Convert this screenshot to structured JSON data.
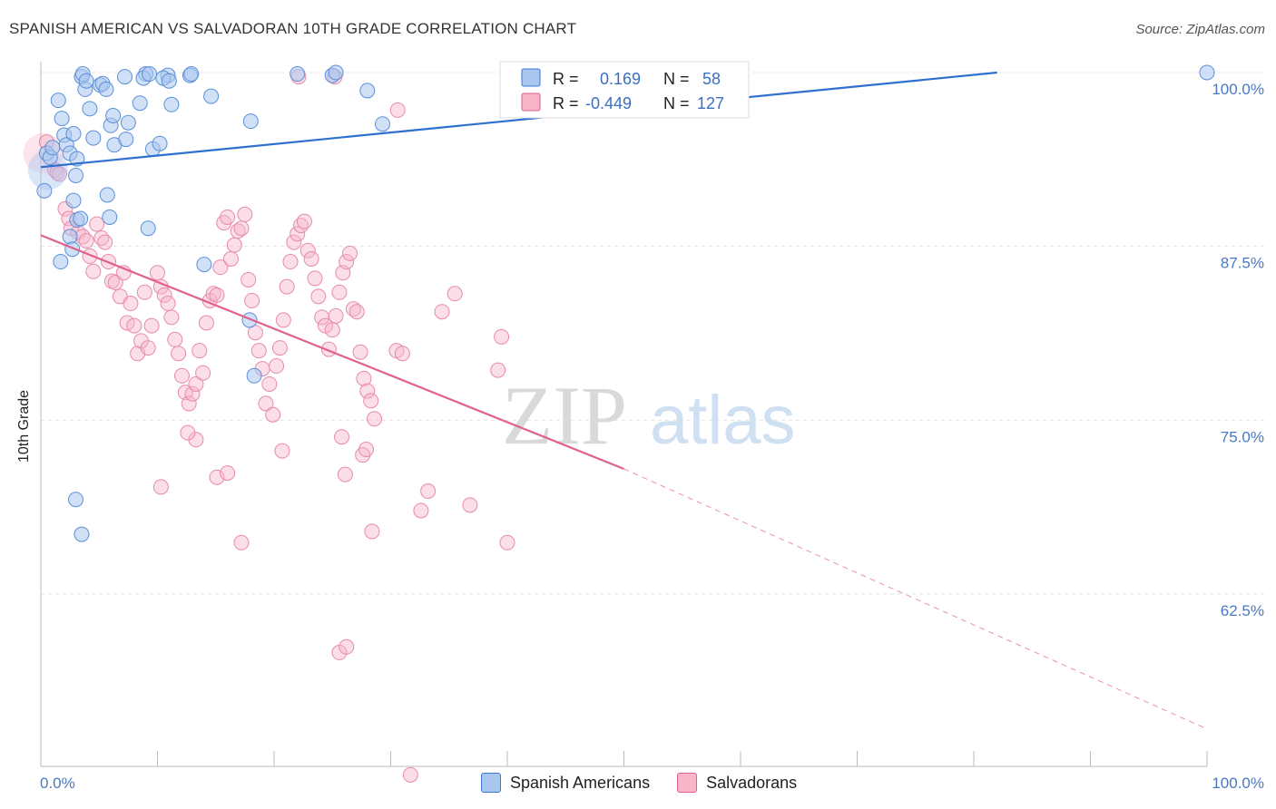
{
  "title": "SPANISH AMERICAN VS SALVADORAN 10TH GRADE CORRELATION CHART",
  "source": "Source: ZipAtlas.com",
  "watermark": {
    "zip": "ZIP",
    "atlas": "atlas"
  },
  "colors": {
    "blue": "#3b77d6",
    "blue_fill": "#a9c6ef",
    "pink": "#e0608e",
    "pink_fill": "#f6b5c9",
    "axis_label": "#4a78c2"
  },
  "legend": {
    "rows": [
      {
        "r_label": "R =",
        "r_value": "0.169",
        "n_label": "N =",
        "n_value": "58"
      },
      {
        "r_label": "R =",
        "r_value": "-0.449",
        "n_label": "N =",
        "n_value": "127"
      }
    ],
    "bottom": [
      "Spanish Americans",
      "Salvadorans"
    ]
  },
  "chart_data": {
    "type": "scatter",
    "xlabel": "",
    "ylabel": "10th Grade",
    "xlim": [
      0,
      100
    ],
    "ylim": [
      52,
      101
    ],
    "x_tick_labels": [
      "0.0%",
      "100.0%"
    ],
    "y_tick_labels": [
      "100.0%",
      "87.5%",
      "75.0%",
      "62.5%"
    ],
    "y_ticks": [
      100.0,
      87.5,
      75.0,
      62.5
    ],
    "grid": true,
    "series": [
      {
        "name": "Spanish Americans",
        "trend": {
          "x0": 0,
          "y0": 93.2,
          "x1": 82,
          "y1": 100,
          "dashed_to": null
        },
        "points": [
          [
            0.3,
            91.5
          ],
          [
            0.5,
            94.2
          ],
          [
            0.8,
            93.9
          ],
          [
            1,
            94.6
          ],
          [
            1.5,
            98
          ],
          [
            1.8,
            96.7
          ],
          [
            2,
            95.5
          ],
          [
            2.2,
            94.8
          ],
          [
            2.5,
            94.2
          ],
          [
            2.8,
            95.6
          ],
          [
            3,
            92.6
          ],
          [
            3.1,
            93.8
          ],
          [
            3.5,
            99.7
          ],
          [
            3.6,
            99.9
          ],
          [
            3.8,
            98.8
          ],
          [
            3.9,
            99.4
          ],
          [
            4.2,
            97.4
          ],
          [
            4.5,
            95.3
          ],
          [
            5.1,
            99.1
          ],
          [
            5.3,
            99.2
          ],
          [
            5.6,
            98.8
          ],
          [
            6,
            96.2
          ],
          [
            6.2,
            96.9
          ],
          [
            6.3,
            94.8
          ],
          [
            7.2,
            99.7
          ],
          [
            7.3,
            95.2
          ],
          [
            7.5,
            96.4
          ],
          [
            8.5,
            97.8
          ],
          [
            9,
            99.9
          ],
          [
            8.8,
            99.6
          ],
          [
            9.3,
            99.9
          ],
          [
            9.6,
            94.5
          ],
          [
            10.2,
            94.9
          ],
          [
            10.9,
            99.8
          ],
          [
            10.5,
            99.6
          ],
          [
            11,
            99.4
          ],
          [
            11.2,
            97.7
          ],
          [
            12.8,
            99.8
          ],
          [
            12.9,
            99.9
          ],
          [
            14.6,
            98.3
          ],
          [
            18,
            96.5
          ],
          [
            22,
            99.9
          ],
          [
            25,
            99.8
          ],
          [
            25.3,
            100
          ],
          [
            28,
            98.7
          ],
          [
            29.3,
            96.3
          ],
          [
            2.8,
            90.8
          ],
          [
            3.1,
            89.4
          ],
          [
            3.4,
            89.5
          ],
          [
            2.5,
            88.2
          ],
          [
            2.7,
            87.3
          ],
          [
            1.7,
            86.4
          ],
          [
            5.7,
            91.2
          ],
          [
            5.9,
            89.6
          ],
          [
            9.2,
            88.8
          ],
          [
            14,
            86.2
          ],
          [
            3,
            69.3
          ],
          [
            3.5,
            66.8
          ],
          [
            17.9,
            82.2
          ],
          [
            18.3,
            78.2
          ],
          [
            100,
            100
          ]
        ],
        "big_point": [
          0.6,
          93.0
        ]
      },
      {
        "name": "Salvadorans",
        "trend": {
          "x0": 0,
          "y0": 88.3,
          "x1": 50,
          "y1": 71.5,
          "dashed_to": [
            100,
            52.8
          ]
        },
        "points": [
          [
            0.5,
            95
          ],
          [
            1.2,
            93
          ],
          [
            1.4,
            92.8
          ],
          [
            1.6,
            92.7
          ],
          [
            2.1,
            90.2
          ],
          [
            2.4,
            89.5
          ],
          [
            2.6,
            88.8
          ],
          [
            3.2,
            88.5
          ],
          [
            3.6,
            88.2
          ],
          [
            3.9,
            87.9
          ],
          [
            4.2,
            86.8
          ],
          [
            4.5,
            85.7
          ],
          [
            4.8,
            89.1
          ],
          [
            5.2,
            88.1
          ],
          [
            5.5,
            87.8
          ],
          [
            5.8,
            86.4
          ],
          [
            6.1,
            85.0
          ],
          [
            6.4,
            84.9
          ],
          [
            6.8,
            83.9
          ],
          [
            7.1,
            85.6
          ],
          [
            7.4,
            82.0
          ],
          [
            7.7,
            83.4
          ],
          [
            8,
            81.8
          ],
          [
            8.3,
            79.8
          ],
          [
            8.6,
            80.7
          ],
          [
            8.9,
            84.2
          ],
          [
            9.2,
            80.2
          ],
          [
            9.5,
            81.8
          ],
          [
            10,
            85.6
          ],
          [
            10.3,
            84.6
          ],
          [
            10.6,
            84.0
          ],
          [
            10.9,
            83.4
          ],
          [
            11.2,
            82.4
          ],
          [
            11.5,
            80.8
          ],
          [
            11.8,
            79.8
          ],
          [
            12.1,
            78.2
          ],
          [
            12.4,
            77.0
          ],
          [
            12.7,
            76.2
          ],
          [
            13,
            76.9
          ],
          [
            13.3,
            77.6
          ],
          [
            13.6,
            80.0
          ],
          [
            13.9,
            78.4
          ],
          [
            14.2,
            82.0
          ],
          [
            14.5,
            83.6
          ],
          [
            14.8,
            84.1
          ],
          [
            15.1,
            84.0
          ],
          [
            15.4,
            86.0
          ],
          [
            15.7,
            89.2
          ],
          [
            16,
            89.6
          ],
          [
            16.3,
            86.6
          ],
          [
            16.6,
            87.6
          ],
          [
            16.9,
            88.6
          ],
          [
            17.2,
            88.8
          ],
          [
            17.5,
            89.8
          ],
          [
            17.8,
            85.1
          ],
          [
            18.1,
            83.6
          ],
          [
            18.4,
            81.3
          ],
          [
            18.7,
            80.0
          ],
          [
            19,
            78.7
          ],
          [
            19.3,
            76.2
          ],
          [
            19.6,
            77.6
          ],
          [
            19.9,
            75.4
          ],
          [
            20.2,
            78.9
          ],
          [
            20.5,
            80.2
          ],
          [
            20.8,
            82.2
          ],
          [
            21.1,
            84.6
          ],
          [
            21.4,
            86.4
          ],
          [
            21.7,
            87.8
          ],
          [
            22,
            88.4
          ],
          [
            22.3,
            89.0
          ],
          [
            22.6,
            89.3
          ],
          [
            22.9,
            87.2
          ],
          [
            23.2,
            86.6
          ],
          [
            23.5,
            85.2
          ],
          [
            23.8,
            83.9
          ],
          [
            24.1,
            82.4
          ],
          [
            24.4,
            81.8
          ],
          [
            24.7,
            80.1
          ],
          [
            25,
            81.5
          ],
          [
            25.3,
            82.5
          ],
          [
            25.6,
            84.2
          ],
          [
            25.9,
            85.6
          ],
          [
            26.2,
            86.4
          ],
          [
            26.5,
            87.0
          ],
          [
            26.8,
            83.0
          ],
          [
            27.1,
            82.8
          ],
          [
            27.4,
            79.9
          ],
          [
            27.7,
            78.0
          ],
          [
            28,
            77.1
          ],
          [
            28.3,
            76.4
          ],
          [
            28.6,
            75.1
          ],
          [
            13.3,
            73.6
          ],
          [
            12.6,
            74.1
          ],
          [
            20.7,
            72.8
          ],
          [
            27.6,
            72.5
          ],
          [
            27.9,
            72.9
          ],
          [
            15.1,
            70.9
          ],
          [
            16,
            71.2
          ],
          [
            10.3,
            70.2
          ],
          [
            30.5,
            80.0
          ],
          [
            31,
            79.8
          ],
          [
            32.6,
            68.5
          ],
          [
            33.2,
            69.9
          ],
          [
            34.4,
            82.8
          ],
          [
            35.5,
            84.1
          ],
          [
            36.8,
            68.9
          ],
          [
            39.2,
            78.6
          ],
          [
            39.5,
            81.0
          ],
          [
            40,
            66.2
          ],
          [
            25.8,
            73.8
          ],
          [
            26.1,
            71.1
          ],
          [
            28.4,
            67.0
          ],
          [
            25.6,
            58.3
          ],
          [
            26.2,
            58.7
          ],
          [
            17.2,
            66.2
          ],
          [
            31.7,
            49.5
          ],
          [
            25.2,
            99.7
          ],
          [
            30.6,
            97.3
          ],
          [
            22.1,
            99.7
          ]
        ],
        "big_point": [
          0.2,
          94.2
        ]
      }
    ]
  }
}
